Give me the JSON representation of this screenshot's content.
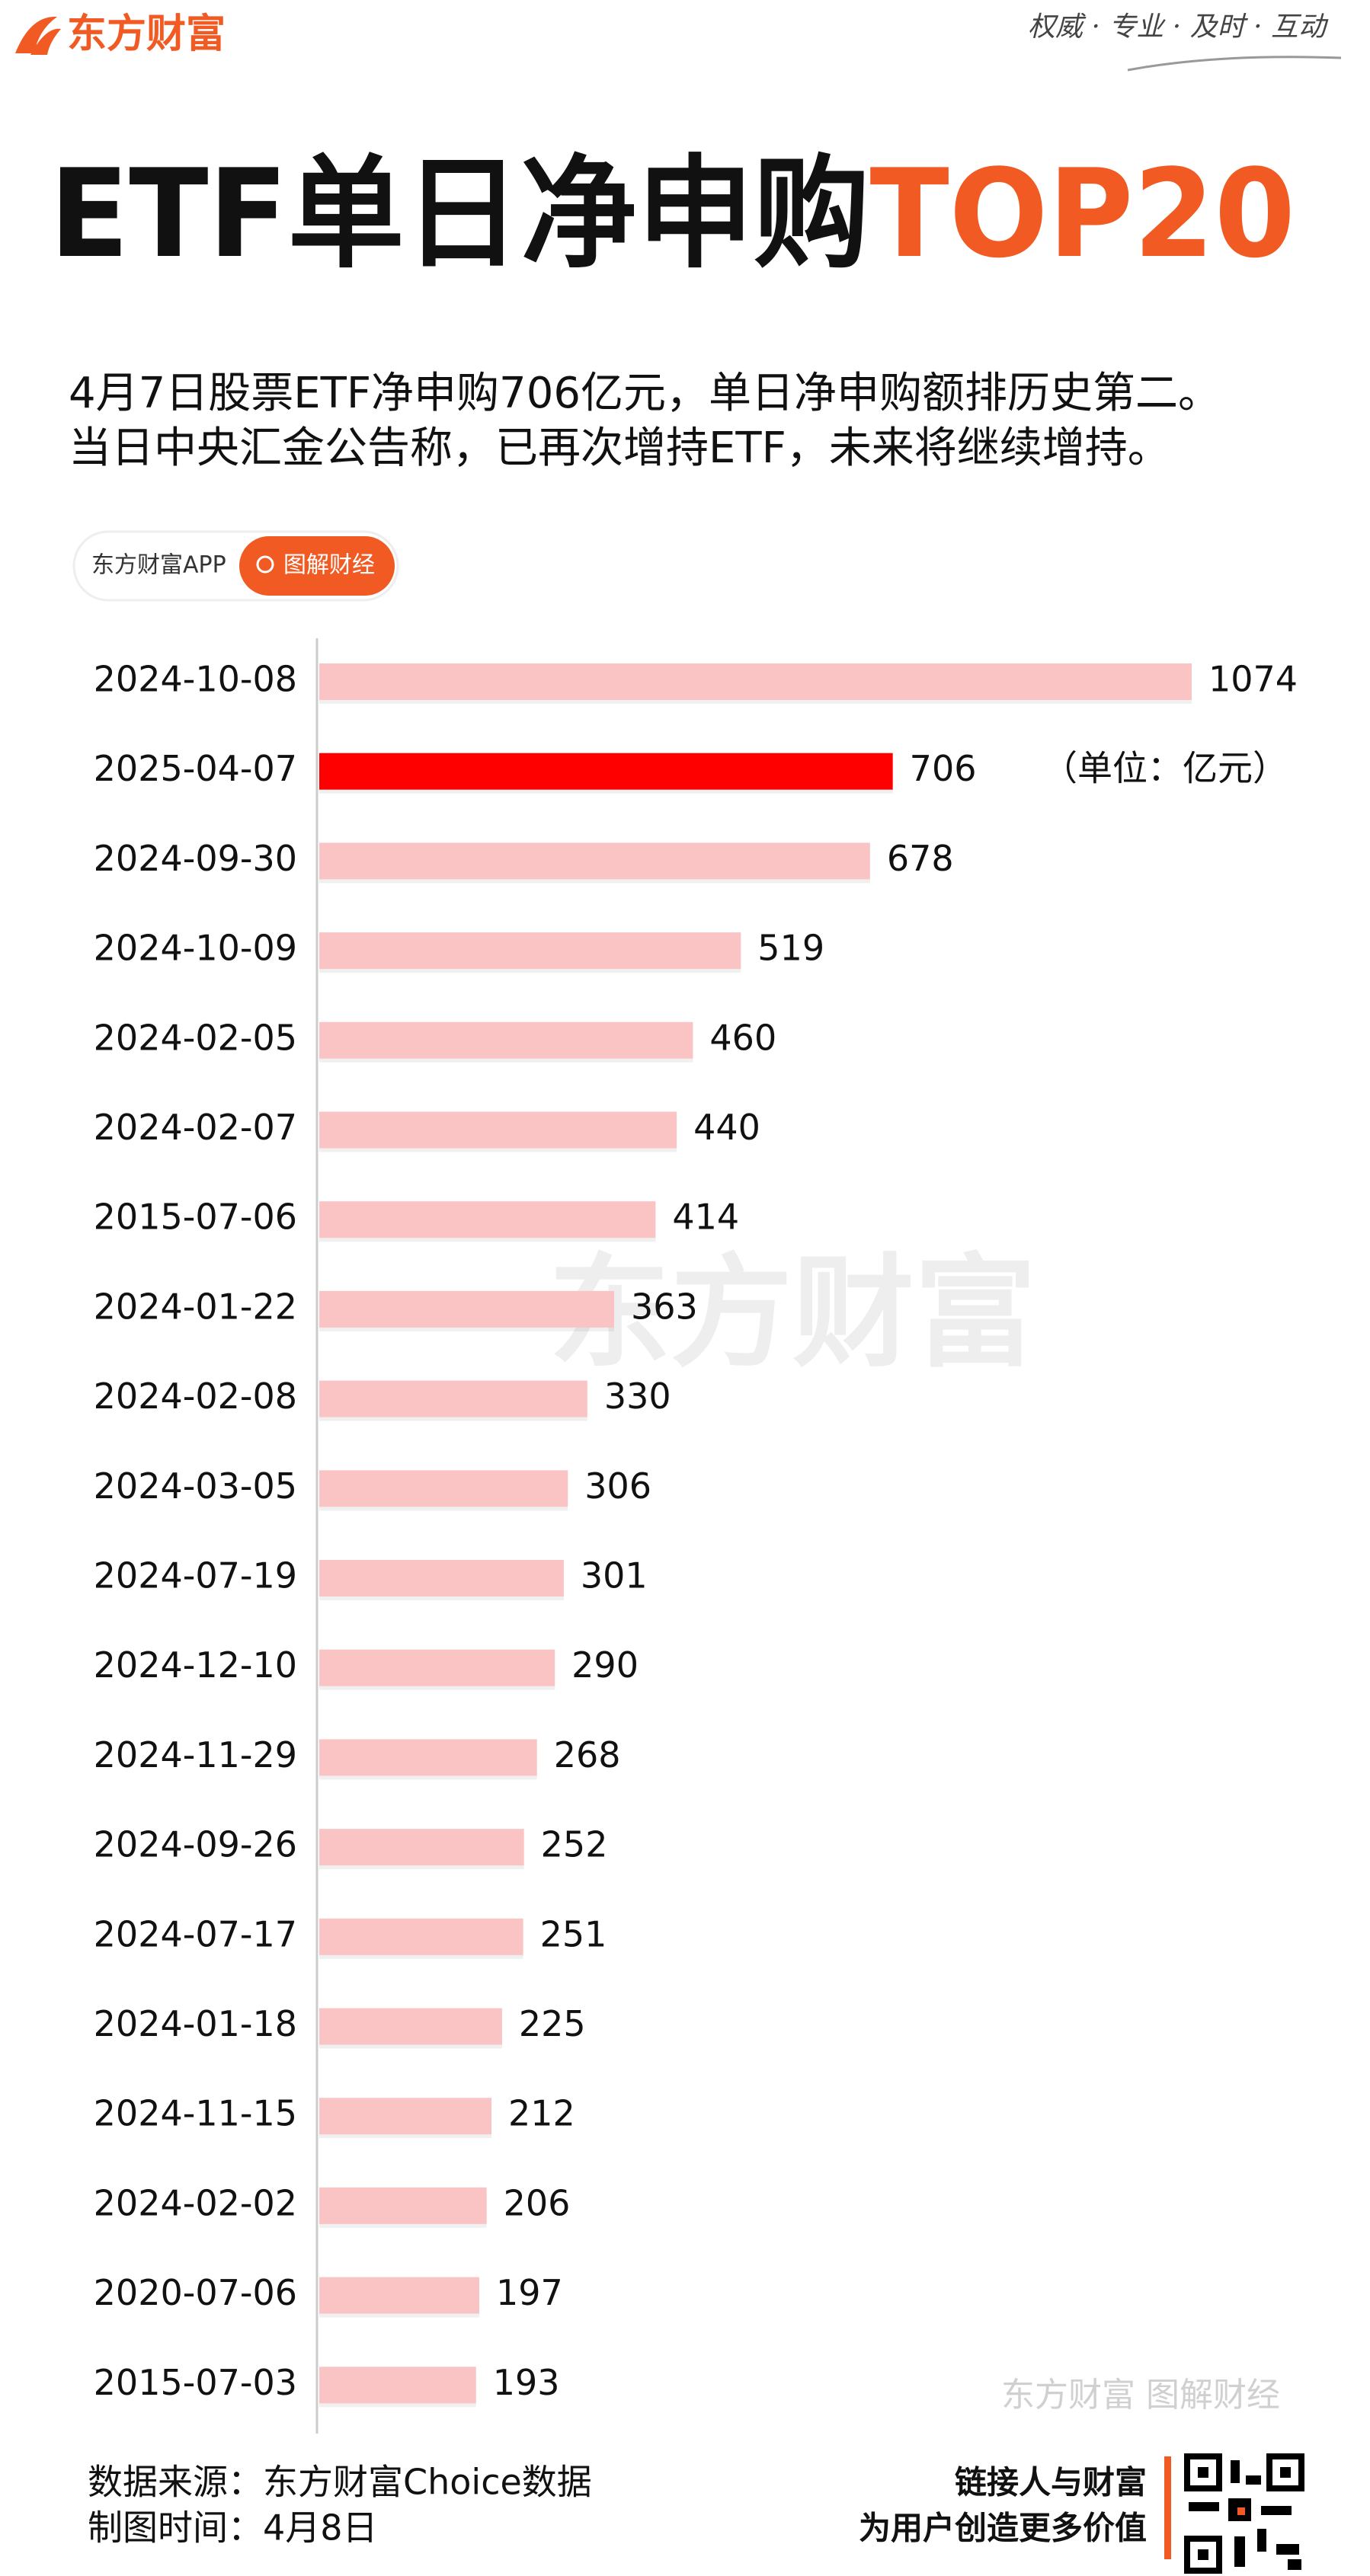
{
  "header": {
    "logo": "东方财富",
    "slogan": "权威 · 专业 · 及时 · 互动"
  },
  "title": {
    "main": "ETF单日净申购",
    "highlight": "TOP20"
  },
  "subtitle": [
    "4月7日股票ETF净申购706亿元，单日净申购额排历史第二。",
    "当日中央汇金公告称，已再次增持ETF，未来将继续增持。"
  ],
  "badge": {
    "source": "东方财富APP",
    "button": "图解财经"
  },
  "chart_data": {
    "type": "barh",
    "unit": "（单位：亿元）",
    "categories": [
      "2024-10-08",
      "2025-04-07",
      "2024-09-30",
      "2024-10-09",
      "2024-02-05",
      "2024-02-07",
      "2015-07-06",
      "2024-01-22",
      "2024-02-08",
      "2024-03-05",
      "2024-07-19",
      "2024-12-10",
      "2024-11-29",
      "2024-09-26",
      "2024-07-17",
      "2024-01-18",
      "2024-11-15",
      "2024-02-02",
      "2020-07-06",
      "2015-07-03"
    ],
    "values": [
      1074,
      706,
      678,
      519,
      460,
      440,
      414,
      363,
      330,
      306,
      301,
      290,
      268,
      252,
      251,
      225,
      212,
      206,
      197,
      193
    ],
    "colors": [
      "#fbc4c4",
      "#ff0000",
      "#fbc4c4",
      "#fbc4c4",
      "#fbc4c4",
      "#fbc4c4",
      "#fbc4c4",
      "#fbc4c4",
      "#fbc4c4",
      "#fbc4c4",
      "#fbc4c4",
      "#fbc4c4",
      "#fbc4c4",
      "#fbc4c4",
      "#fbc4c4",
      "#fbc4c4",
      "#fbc4c4",
      "#fbc4c4",
      "#fbc4c4",
      "#fbc4c4"
    ]
  },
  "watermark": {
    "center": "东方财富",
    "bottom": "东方财富 图解财经"
  },
  "footer": {
    "source": "数据来源：东方财富Choice数据",
    "date": "制图时间：4月8日",
    "slogan1": "链接人与财富",
    "slogan2": "为用户创造更多价值"
  }
}
